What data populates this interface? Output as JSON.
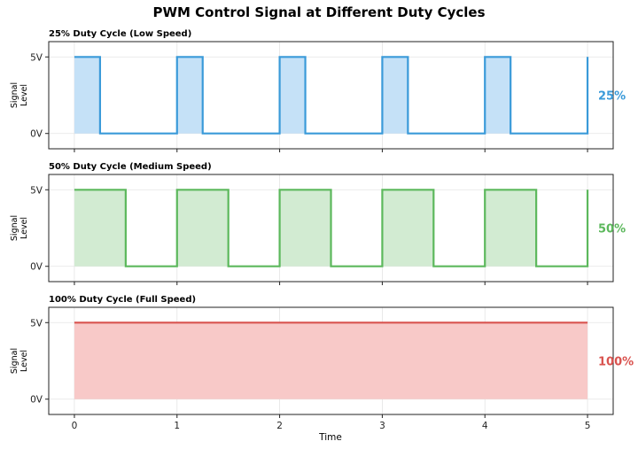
{
  "chart_data": {
    "title": "PWM Control Signal at Different Duty Cycles",
    "xlabel": "Time",
    "xlim": [
      -0.25,
      5.25
    ],
    "xticks": [
      0,
      1,
      2,
      3,
      4,
      5
    ],
    "xtick_labels": [
      "0",
      "1",
      "2",
      "3",
      "4",
      "5"
    ],
    "grid": true,
    "panels": [
      {
        "type": "line",
        "title": "25% Duty Cycle (Low Speed)",
        "ylabel": "Signal\nLevel",
        "ylim": [
          -1,
          6
        ],
        "yticks": [
          0,
          5
        ],
        "ytick_labels": [
          "0V",
          "5V"
        ],
        "duty_cycle": 0.25,
        "period": 1,
        "high": 5,
        "low": 0,
        "x_range": [
          0,
          5
        ],
        "label": "25%",
        "color": "#3a9ad9",
        "fill_color": "#c5e1f7"
      },
      {
        "type": "line",
        "title": "50% Duty Cycle (Medium Speed)",
        "ylabel": "Signal\nLevel",
        "ylim": [
          -1,
          6
        ],
        "yticks": [
          0,
          5
        ],
        "ytick_labels": [
          "0V",
          "5V"
        ],
        "duty_cycle": 0.5,
        "period": 1,
        "high": 5,
        "low": 0,
        "x_range": [
          0,
          5
        ],
        "label": "50%",
        "color": "#5cb85c",
        "fill_color": "#d2ebd2"
      },
      {
        "type": "line",
        "title": "100% Duty Cycle (Full Speed)",
        "ylabel": "Signal\nLevel",
        "ylim": [
          -1,
          6
        ],
        "yticks": [
          0,
          5
        ],
        "ytick_labels": [
          "0V",
          "5V"
        ],
        "duty_cycle": 1.0,
        "period": 1,
        "high": 5,
        "low": 0,
        "x_range": [
          0,
          5
        ],
        "label": "100%",
        "color": "#d9534f",
        "fill_color": "#f8c9c8"
      }
    ]
  }
}
